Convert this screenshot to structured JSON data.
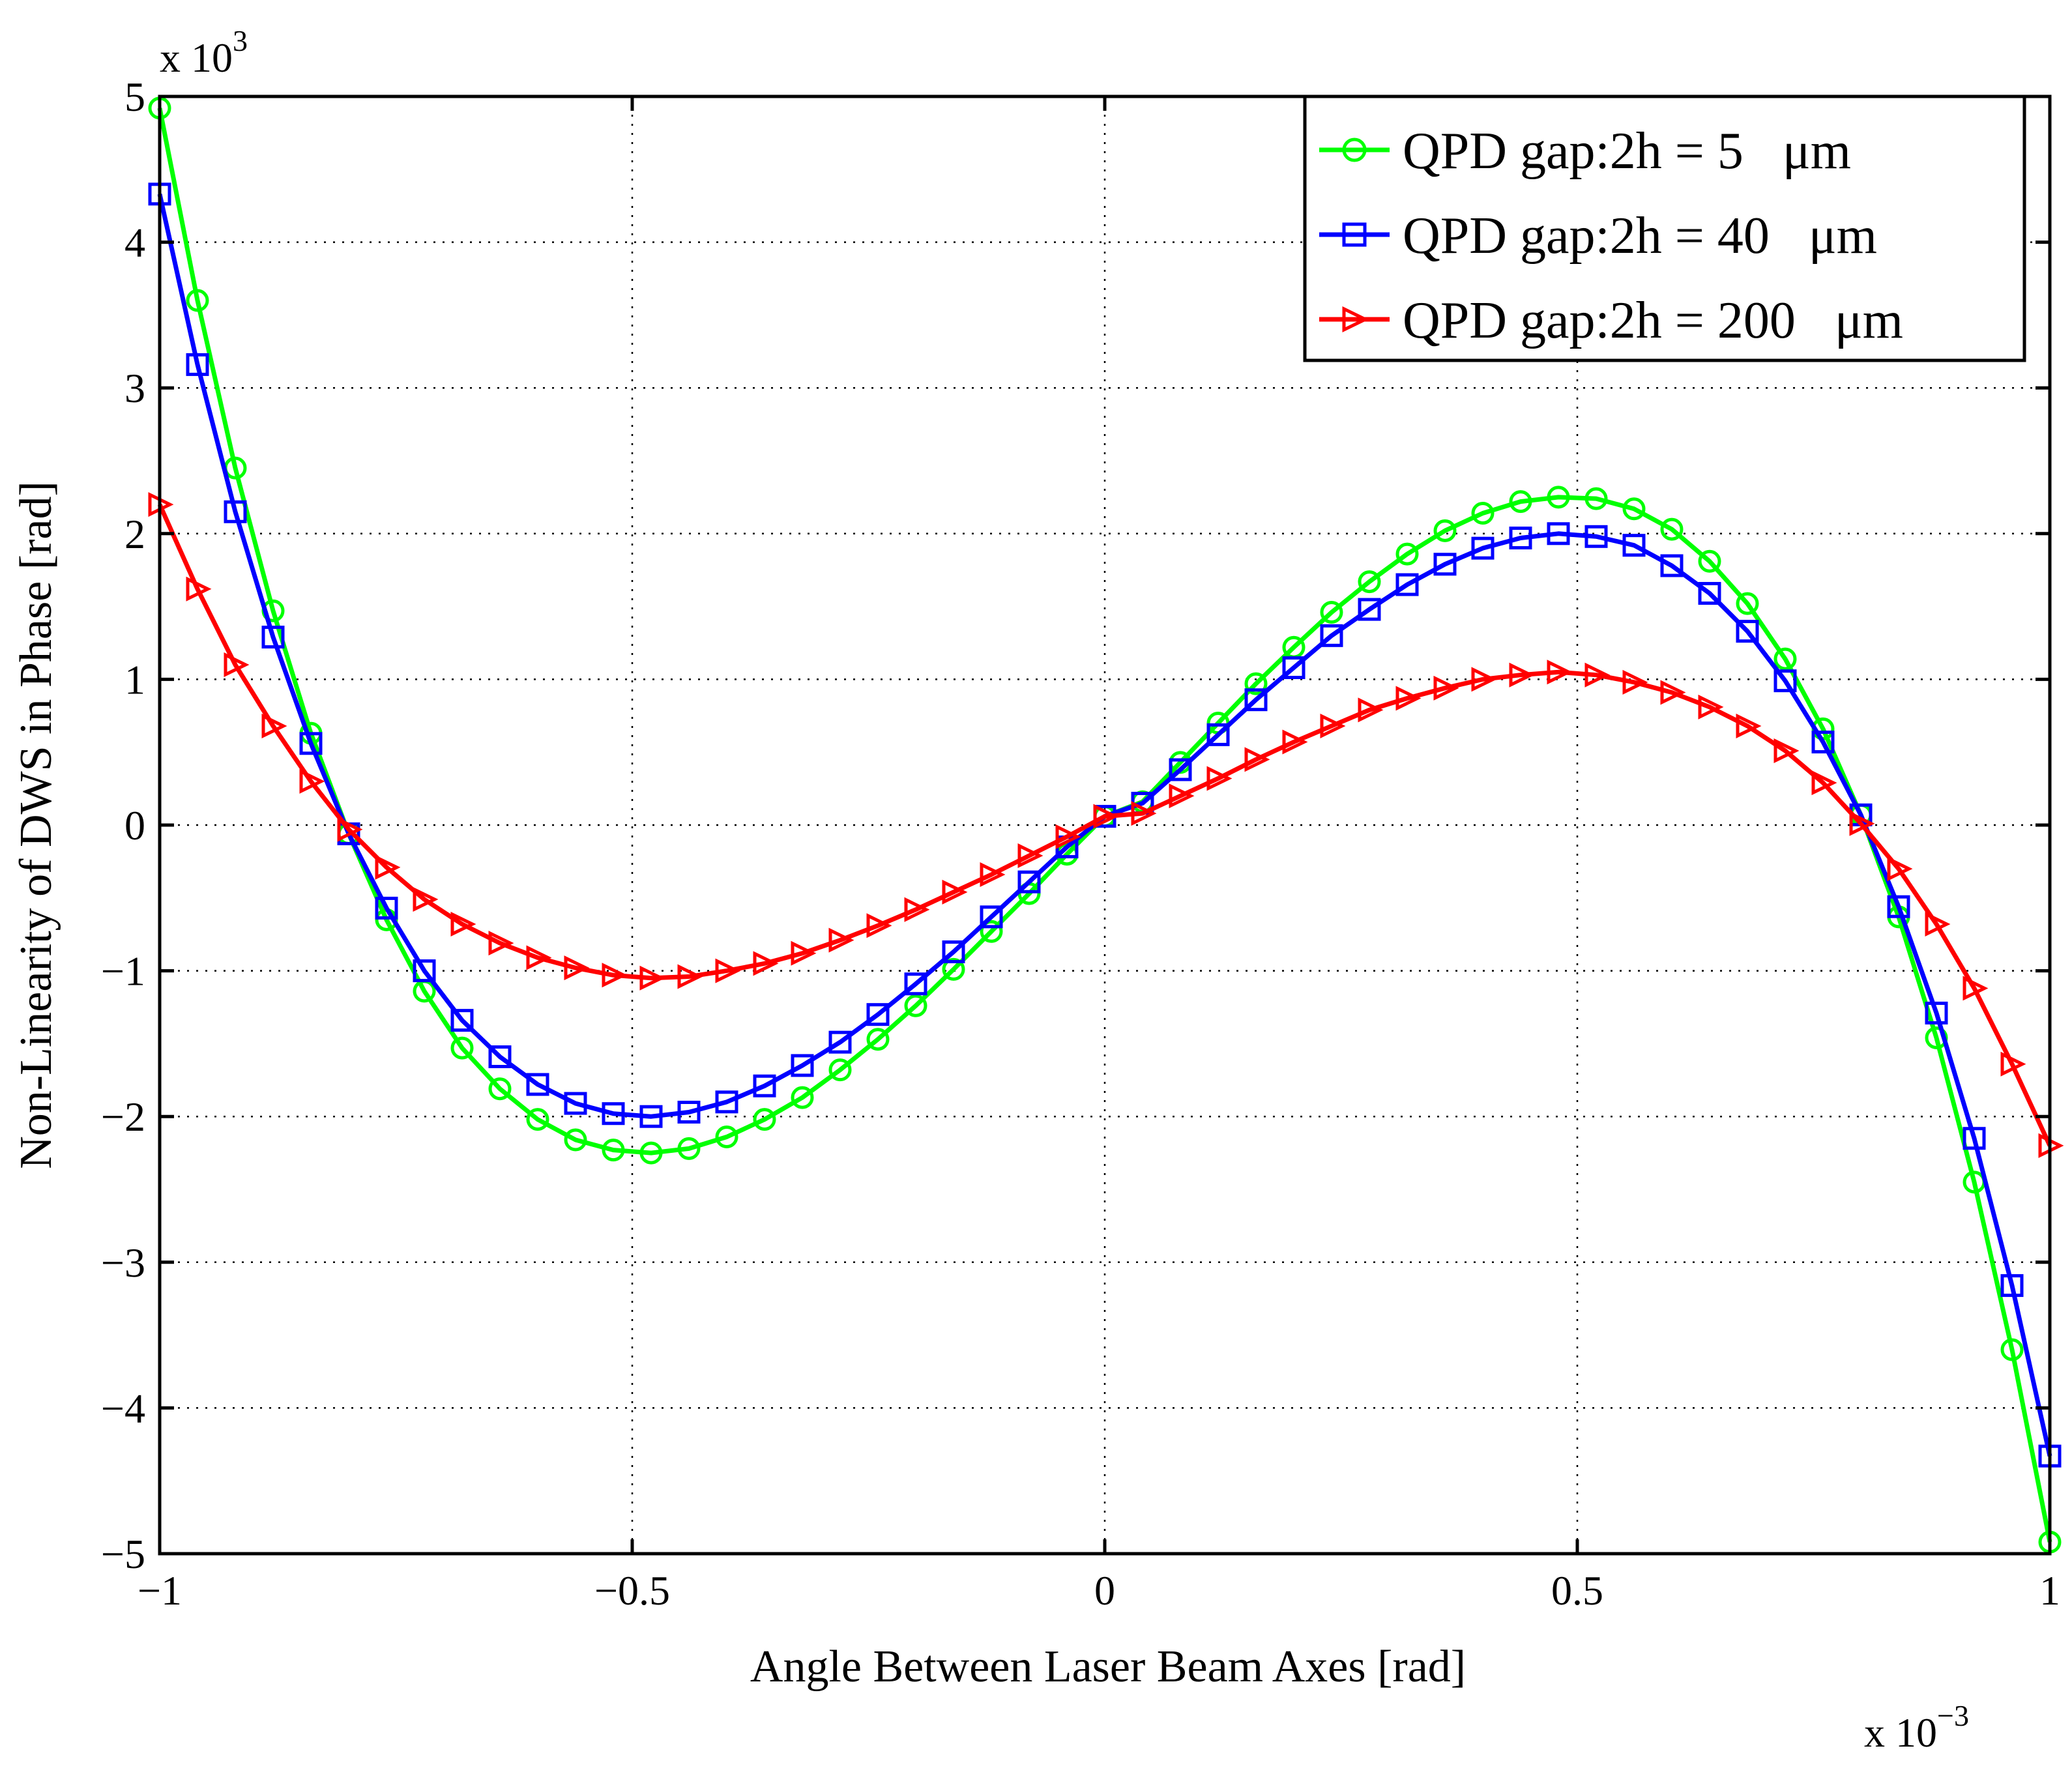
{
  "chart_data": {
    "type": "line",
    "title": "",
    "xlabel": "Angle Between Laser Beam Axes [rad]",
    "ylabel": "Non-Linearity of DWS in Phase [rad]",
    "x_multiplier": "x 10",
    "x_multiplier_exp": "−3",
    "y_multiplier": "x 10",
    "y_multiplier_exp": "3",
    "xlim": [
      -1,
      1
    ],
    "ylim": [
      -5,
      5
    ],
    "x_ticks": [
      -1,
      -0.5,
      0,
      0.5,
      1
    ],
    "x_tick_labels": [
      "−1",
      "−0.5",
      "0",
      "0.5",
      "1"
    ],
    "y_ticks": [
      -5,
      -4,
      -3,
      -2,
      -1,
      0,
      1,
      2,
      3,
      4,
      5
    ],
    "y_tick_labels": [
      "−5",
      "−4",
      "−3",
      "−2",
      "−1",
      "0",
      "1",
      "2",
      "3",
      "4",
      "5"
    ],
    "grid": true,
    "legend_position": "top-right",
    "x": [
      -1.0,
      -0.96,
      -0.92,
      -0.88,
      -0.84,
      -0.8,
      -0.76,
      -0.72,
      -0.68,
      -0.64,
      -0.6,
      -0.56,
      -0.52,
      -0.48,
      -0.44,
      -0.4,
      -0.36,
      -0.32,
      -0.28,
      -0.24,
      -0.2,
      -0.16,
      -0.12,
      -0.08,
      -0.04,
      0.0,
      0.04,
      0.08,
      0.12,
      0.16,
      0.2,
      0.24,
      0.28,
      0.32,
      0.36,
      0.4,
      0.44,
      0.48,
      0.52,
      0.56,
      0.6,
      0.64,
      0.68,
      0.72,
      0.76,
      0.8,
      0.84,
      0.88,
      0.92,
      0.96,
      1.0
    ],
    "series": [
      {
        "name": "QPD gap:2h = 5   μm",
        "color": "#00ff00",
        "marker": "circle",
        "values": [
          4.92,
          3.6,
          2.45,
          1.47,
          0.63,
          -0.06,
          -0.65,
          -1.14,
          -1.53,
          -1.81,
          -2.02,
          -2.16,
          -2.23,
          -2.25,
          -2.22,
          -2.14,
          -2.02,
          -1.87,
          -1.68,
          -1.47,
          -1.24,
          -0.99,
          -0.73,
          -0.47,
          -0.2,
          0.06,
          0.16,
          0.43,
          0.7,
          0.97,
          1.22,
          1.46,
          1.67,
          1.86,
          2.02,
          2.14,
          2.22,
          2.25,
          2.24,
          2.17,
          2.03,
          1.81,
          1.52,
          1.14,
          0.66,
          0.07,
          -0.63,
          -1.46,
          -2.45,
          -3.6,
          -4.92
        ]
      },
      {
        "name": "QPD gap:2h = 40   μm",
        "color": "#0000ff",
        "marker": "square",
        "values": [
          4.33,
          3.16,
          2.15,
          1.29,
          0.56,
          -0.06,
          -0.57,
          -1.0,
          -1.34,
          -1.59,
          -1.78,
          -1.91,
          -1.98,
          -2.0,
          -1.97,
          -1.9,
          -1.79,
          -1.65,
          -1.49,
          -1.3,
          -1.09,
          -0.87,
          -0.63,
          -0.39,
          -0.15,
          0.06,
          0.15,
          0.38,
          0.62,
          0.86,
          1.08,
          1.3,
          1.48,
          1.65,
          1.79,
          1.9,
          1.97,
          2.0,
          1.98,
          1.92,
          1.78,
          1.59,
          1.33,
          0.99,
          0.57,
          0.07,
          -0.56,
          -1.29,
          -2.15,
          -3.16,
          -4.33
        ]
      },
      {
        "name": "QPD gap:2h = 200   μm",
        "color": "#ff0000",
        "marker": "triangle-right",
        "values": [
          2.2,
          1.62,
          1.1,
          0.68,
          0.3,
          -0.03,
          -0.29,
          -0.51,
          -0.68,
          -0.81,
          -0.91,
          -0.98,
          -1.03,
          -1.05,
          -1.04,
          -1.0,
          -0.95,
          -0.88,
          -0.79,
          -0.69,
          -0.58,
          -0.46,
          -0.34,
          -0.21,
          -0.08,
          0.06,
          0.08,
          0.2,
          0.32,
          0.45,
          0.57,
          0.68,
          0.79,
          0.87,
          0.94,
          1.0,
          1.03,
          1.05,
          1.03,
          0.98,
          0.91,
          0.81,
          0.68,
          0.51,
          0.29,
          0.01,
          -0.3,
          -0.68,
          -1.12,
          -1.64,
          -2.2
        ]
      }
    ]
  }
}
